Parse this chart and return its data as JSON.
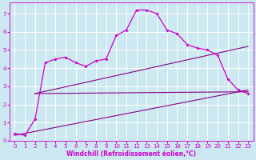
{
  "xlabel": "Windchill (Refroidissement éolien,°C)",
  "bg_color": "#cce8f0",
  "grid_color": "#ffffff",
  "line_color": "#cc00cc",
  "line_color2": "#880088",
  "xlim": [
    -0.5,
    23.5
  ],
  "ylim": [
    0,
    7.6
  ],
  "xticks": [
    0,
    1,
    2,
    3,
    4,
    5,
    6,
    7,
    8,
    9,
    10,
    11,
    12,
    13,
    14,
    15,
    16,
    17,
    18,
    19,
    20,
    21,
    22,
    23
  ],
  "yticks": [
    0,
    1,
    2,
    3,
    4,
    5,
    6,
    7
  ],
  "curve1_x": [
    0,
    1,
    2,
    3,
    4,
    5,
    6,
    7,
    8,
    9,
    10,
    11,
    12,
    13,
    14,
    15,
    16,
    17,
    18,
    19,
    20,
    21,
    22,
    23
  ],
  "curve1_y": [
    0.4,
    0.3,
    1.2,
    4.3,
    4.5,
    4.6,
    4.3,
    4.1,
    4.4,
    4.5,
    5.8,
    6.1,
    7.2,
    7.2,
    7.0,
    6.1,
    5.9,
    5.3,
    5.1,
    5.0,
    4.7,
    3.4,
    2.8,
    2.6
  ],
  "flat_line_x": [
    2,
    23
  ],
  "flat_line_y": [
    2.6,
    2.7
  ],
  "rise_line1_x": [
    2,
    23
  ],
  "rise_line1_y": [
    2.6,
    5.2
  ],
  "rise_line2_x": [
    0,
    23
  ],
  "rise_line2_y": [
    0.3,
    2.8
  ],
  "xlabel_fontsize": 5.5,
  "tick_fontsize": 5
}
